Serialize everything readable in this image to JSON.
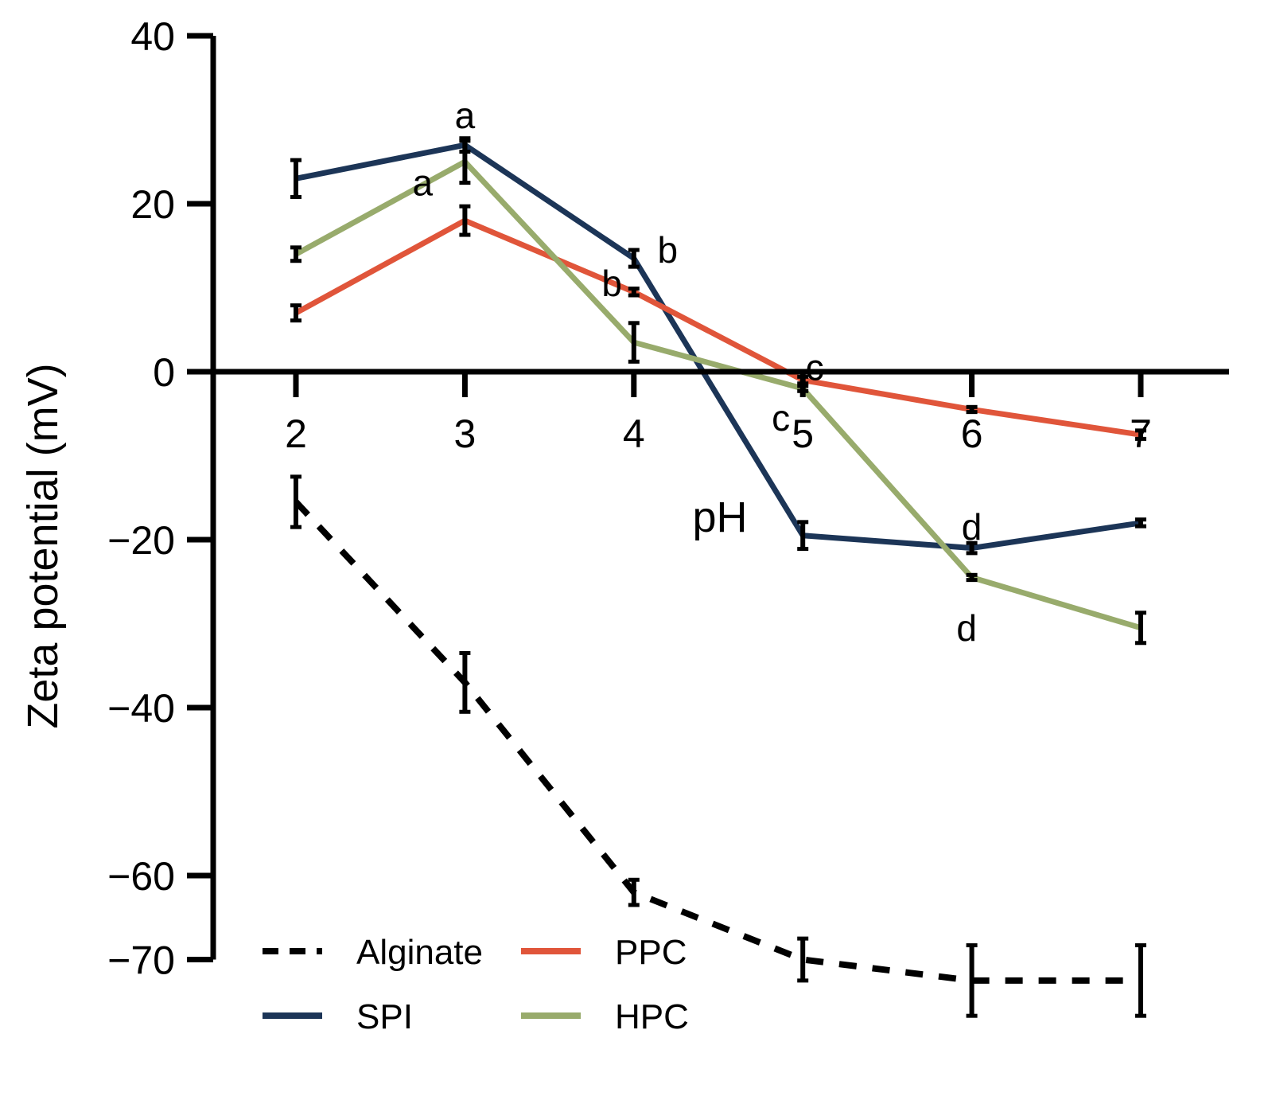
{
  "chart_data": {
    "type": "line",
    "xlabel": "pH",
    "ylabel": "Zeta potential (mV)",
    "x": [
      2,
      3,
      4,
      5,
      6,
      7
    ],
    "ylim": [
      -70,
      40
    ],
    "yticks": [
      40,
      20,
      0,
      -20,
      -40,
      -60,
      -70
    ],
    "ytick_labels": [
      "40",
      "20",
      "0",
      "−20",
      "−40",
      "−60",
      "−70"
    ],
    "xtick_labels": [
      "2",
      "3",
      "4",
      "5",
      "6",
      "7"
    ],
    "grid": false,
    "legend_position": "bottom-center",
    "series": [
      {
        "name": "Alginate",
        "color": "#000000",
        "dash": true,
        "values": [
          -15.5,
          -37.0,
          -62.0,
          -70.0,
          -72.5,
          -72.5
        ],
        "errors": [
          3.0,
          3.5,
          1.5,
          2.5,
          4.2,
          4.2
        ]
      },
      {
        "name": "SPI",
        "color": "#1c3557",
        "dash": false,
        "values": [
          23.0,
          27.0,
          13.5,
          -19.5,
          -21.0,
          -18.0
        ],
        "errors": [
          2.2,
          0.8,
          1.0,
          1.6,
          0.6,
          0.4
        ]
      },
      {
        "name": "PPC",
        "color": "#e0553a",
        "dash": false,
        "values": [
          7.0,
          18.0,
          9.5,
          -1.0,
          -4.5,
          -7.5
        ],
        "errors": [
          0.9,
          1.7,
          0.4,
          0.4,
          0.3,
          0.5
        ]
      },
      {
        "name": "HPC",
        "color": "#98ab6c",
        "dash": false,
        "values": [
          14.0,
          25.0,
          3.5,
          -2.0,
          -24.5,
          -30.5
        ],
        "errors": [
          0.8,
          2.5,
          2.3,
          0.3,
          0.3,
          1.8
        ]
      }
    ],
    "annotations": [
      {
        "text": "a",
        "x": 3,
        "y": 30.5
      },
      {
        "text": "a",
        "x": 2.75,
        "y": 22.5
      },
      {
        "text": "b",
        "x": 4.2,
        "y": 14.5
      },
      {
        "text": "b",
        "x": 3.87,
        "y": 10.5
      },
      {
        "text": "c",
        "x": 5.07,
        "y": 0.5
      },
      {
        "text": "c",
        "x": 4.87,
        "y": -5.5
      },
      {
        "text": "d",
        "x": 6.0,
        "y": -18.5
      },
      {
        "text": "d",
        "x": 5.97,
        "y": -30.5
      }
    ]
  }
}
